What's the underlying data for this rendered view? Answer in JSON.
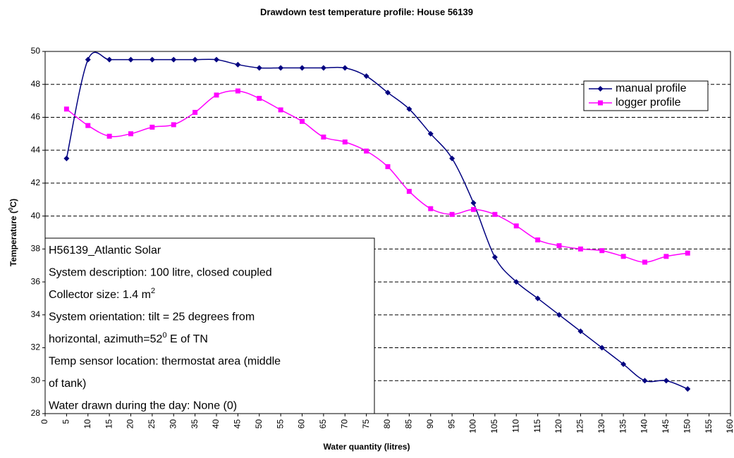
{
  "chart_data": {
    "type": "line",
    "title": "Drawdown test temperature profile: House 56139",
    "xlabel": "Water quantity (litres)",
    "ylabel": [
      {
        "text": "Temperature ("
      },
      {
        "sup": "0"
      },
      {
        "text": "C)"
      }
    ],
    "x": [
      5,
      10,
      15,
      20,
      25,
      30,
      35,
      40,
      45,
      50,
      55,
      60,
      65,
      70,
      75,
      80,
      85,
      90,
      95,
      100,
      105,
      110,
      115,
      120,
      125,
      130,
      135,
      140,
      145,
      150
    ],
    "series": [
      {
        "name": "manual profile",
        "color": "#000080",
        "marker": "diamond",
        "values": [
          43.5,
          49.5,
          49.5,
          49.5,
          49.5,
          49.5,
          49.5,
          49.5,
          49.2,
          49.0,
          49.0,
          49.0,
          49.0,
          49.0,
          48.5,
          47.5,
          46.5,
          45.0,
          43.5,
          40.8,
          37.5,
          36.0,
          35.0,
          34.0,
          33.0,
          32.0,
          31.0,
          30.0,
          30.0,
          29.5
        ]
      },
      {
        "name": "logger profile",
        "color": "#ff00ff",
        "marker": "square",
        "values": [
          46.5,
          45.5,
          44.85,
          45.0,
          45.4,
          45.55,
          46.3,
          47.35,
          47.6,
          47.15,
          46.45,
          45.75,
          44.8,
          44.5,
          43.95,
          43.0,
          41.5,
          40.45,
          40.1,
          40.4,
          40.1,
          39.4,
          38.55,
          38.2,
          38.0,
          37.9,
          37.55,
          37.2,
          37.55,
          37.75
        ]
      }
    ],
    "xlim": [
      0,
      160
    ],
    "xticks": [
      0,
      5,
      10,
      15,
      20,
      25,
      30,
      35,
      40,
      45,
      50,
      55,
      60,
      65,
      70,
      75,
      80,
      85,
      90,
      95,
      100,
      105,
      110,
      115,
      120,
      125,
      130,
      135,
      140,
      145,
      150,
      155,
      160
    ],
    "ylim": [
      28,
      50
    ],
    "yticks": [
      28,
      30,
      32,
      34,
      36,
      38,
      40,
      42,
      44,
      46,
      48,
      50
    ],
    "grid": true,
    "legend": "upper right",
    "annotation": [
      [
        {
          "text": "H56139_Atlantic Solar"
        }
      ],
      [
        {
          "text": "System description: 100 litre, closed coupled"
        }
      ],
      [
        {
          "text": "Collector size: 1.4 m"
        },
        {
          "sup": "2"
        }
      ],
      [
        {
          "text": "System orientation: tilt = 25 degrees from"
        }
      ],
      [
        {
          "text": "horizontal, azimuth=52"
        },
        {
          "sup": "0"
        },
        {
          "text": " E of TN"
        }
      ],
      [
        {
          "text": "Temp sensor location: thermostat area (middle"
        }
      ],
      [
        {
          "text": "of tank)"
        }
      ],
      [
        {
          "text": "Water drawn during the day: None  (0)"
        }
      ]
    ]
  }
}
